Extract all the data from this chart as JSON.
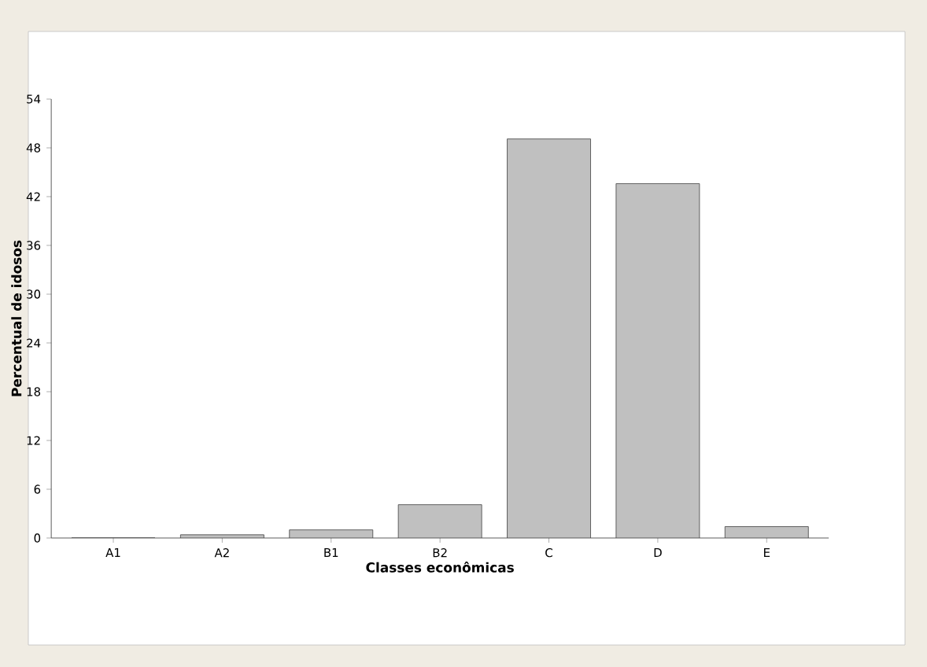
{
  "chart_data": {
    "type": "bar",
    "xlabel": "Classes econômicas",
    "ylabel": "Percentual de idosos",
    "categories": [
      "A1",
      "A2",
      "B1",
      "B2",
      "C",
      "D",
      "E"
    ],
    "values": [
      0,
      0.4,
      1.0,
      4.1,
      49.1,
      43.6,
      1.4
    ],
    "color": "#c0c0c0",
    "ylim": [
      0,
      54
    ],
    "yticks": [
      0,
      6,
      12,
      18,
      24,
      30,
      36,
      42,
      48,
      54
    ],
    "grid": false
  }
}
